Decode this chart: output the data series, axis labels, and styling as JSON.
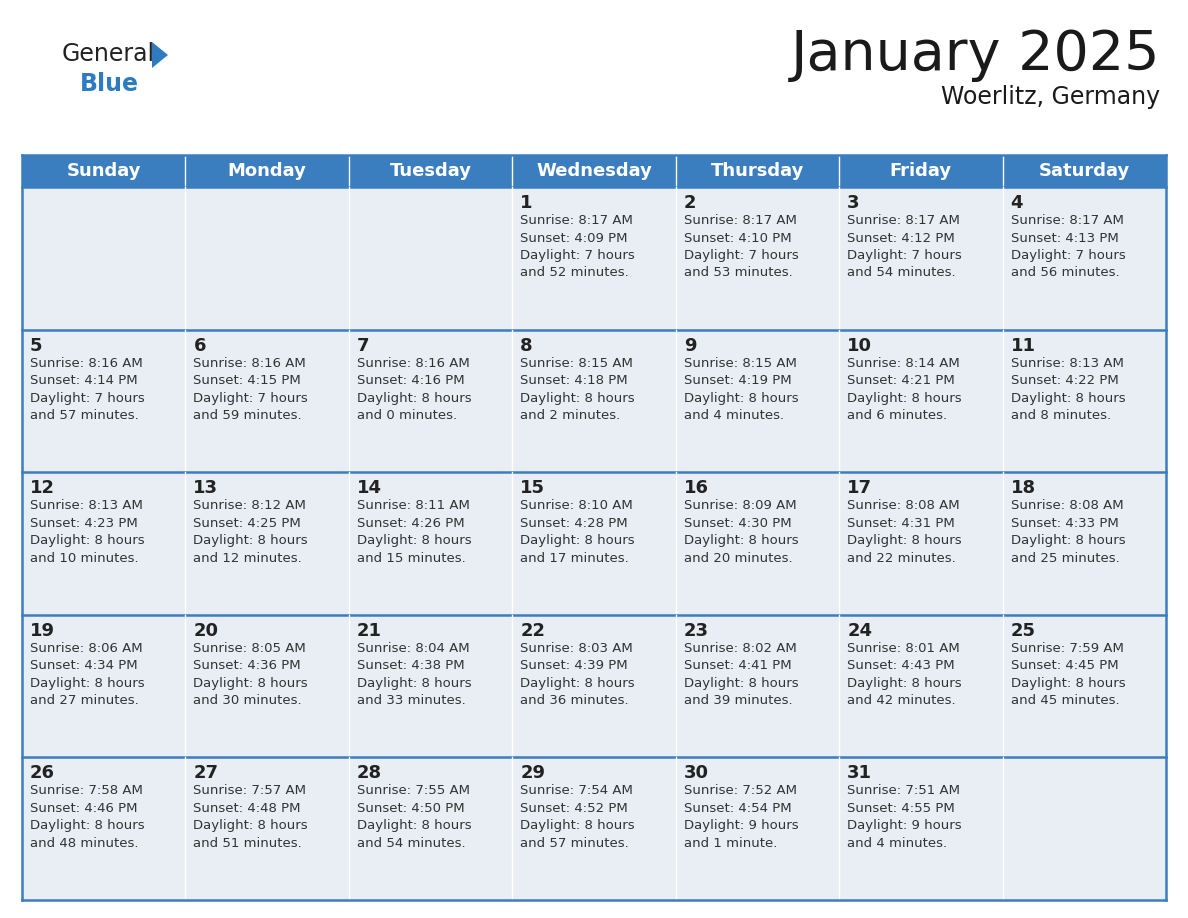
{
  "title": "January 2025",
  "subtitle": "Woerlitz, Germany",
  "header_color": "#3A7EBF",
  "header_text_color": "#FFFFFF",
  "cell_bg_color": "#E8EEF4",
  "border_color": "#3A7EBF",
  "day_names": [
    "Sunday",
    "Monday",
    "Tuesday",
    "Wednesday",
    "Thursday",
    "Friday",
    "Saturday"
  ],
  "title_fontsize": 40,
  "subtitle_fontsize": 17,
  "header_fontsize": 13,
  "day_num_fontsize": 13,
  "info_fontsize": 9.5,
  "logo_general_color": "#222222",
  "logo_blue_color": "#2E7BBF",
  "logo_triangle_color": "#2E7BBF",
  "weeks": [
    [
      {
        "day": "",
        "info": ""
      },
      {
        "day": "",
        "info": ""
      },
      {
        "day": "",
        "info": ""
      },
      {
        "day": "1",
        "info": "Sunrise: 8:17 AM\nSunset: 4:09 PM\nDaylight: 7 hours\nand 52 minutes."
      },
      {
        "day": "2",
        "info": "Sunrise: 8:17 AM\nSunset: 4:10 PM\nDaylight: 7 hours\nand 53 minutes."
      },
      {
        "day": "3",
        "info": "Sunrise: 8:17 AM\nSunset: 4:12 PM\nDaylight: 7 hours\nand 54 minutes."
      },
      {
        "day": "4",
        "info": "Sunrise: 8:17 AM\nSunset: 4:13 PM\nDaylight: 7 hours\nand 56 minutes."
      }
    ],
    [
      {
        "day": "5",
        "info": "Sunrise: 8:16 AM\nSunset: 4:14 PM\nDaylight: 7 hours\nand 57 minutes."
      },
      {
        "day": "6",
        "info": "Sunrise: 8:16 AM\nSunset: 4:15 PM\nDaylight: 7 hours\nand 59 minutes."
      },
      {
        "day": "7",
        "info": "Sunrise: 8:16 AM\nSunset: 4:16 PM\nDaylight: 8 hours\nand 0 minutes."
      },
      {
        "day": "8",
        "info": "Sunrise: 8:15 AM\nSunset: 4:18 PM\nDaylight: 8 hours\nand 2 minutes."
      },
      {
        "day": "9",
        "info": "Sunrise: 8:15 AM\nSunset: 4:19 PM\nDaylight: 8 hours\nand 4 minutes."
      },
      {
        "day": "10",
        "info": "Sunrise: 8:14 AM\nSunset: 4:21 PM\nDaylight: 8 hours\nand 6 minutes."
      },
      {
        "day": "11",
        "info": "Sunrise: 8:13 AM\nSunset: 4:22 PM\nDaylight: 8 hours\nand 8 minutes."
      }
    ],
    [
      {
        "day": "12",
        "info": "Sunrise: 8:13 AM\nSunset: 4:23 PM\nDaylight: 8 hours\nand 10 minutes."
      },
      {
        "day": "13",
        "info": "Sunrise: 8:12 AM\nSunset: 4:25 PM\nDaylight: 8 hours\nand 12 minutes."
      },
      {
        "day": "14",
        "info": "Sunrise: 8:11 AM\nSunset: 4:26 PM\nDaylight: 8 hours\nand 15 minutes."
      },
      {
        "day": "15",
        "info": "Sunrise: 8:10 AM\nSunset: 4:28 PM\nDaylight: 8 hours\nand 17 minutes."
      },
      {
        "day": "16",
        "info": "Sunrise: 8:09 AM\nSunset: 4:30 PM\nDaylight: 8 hours\nand 20 minutes."
      },
      {
        "day": "17",
        "info": "Sunrise: 8:08 AM\nSunset: 4:31 PM\nDaylight: 8 hours\nand 22 minutes."
      },
      {
        "day": "18",
        "info": "Sunrise: 8:08 AM\nSunset: 4:33 PM\nDaylight: 8 hours\nand 25 minutes."
      }
    ],
    [
      {
        "day": "19",
        "info": "Sunrise: 8:06 AM\nSunset: 4:34 PM\nDaylight: 8 hours\nand 27 minutes."
      },
      {
        "day": "20",
        "info": "Sunrise: 8:05 AM\nSunset: 4:36 PM\nDaylight: 8 hours\nand 30 minutes."
      },
      {
        "day": "21",
        "info": "Sunrise: 8:04 AM\nSunset: 4:38 PM\nDaylight: 8 hours\nand 33 minutes."
      },
      {
        "day": "22",
        "info": "Sunrise: 8:03 AM\nSunset: 4:39 PM\nDaylight: 8 hours\nand 36 minutes."
      },
      {
        "day": "23",
        "info": "Sunrise: 8:02 AM\nSunset: 4:41 PM\nDaylight: 8 hours\nand 39 minutes."
      },
      {
        "day": "24",
        "info": "Sunrise: 8:01 AM\nSunset: 4:43 PM\nDaylight: 8 hours\nand 42 minutes."
      },
      {
        "day": "25",
        "info": "Sunrise: 7:59 AM\nSunset: 4:45 PM\nDaylight: 8 hours\nand 45 minutes."
      }
    ],
    [
      {
        "day": "26",
        "info": "Sunrise: 7:58 AM\nSunset: 4:46 PM\nDaylight: 8 hours\nand 48 minutes."
      },
      {
        "day": "27",
        "info": "Sunrise: 7:57 AM\nSunset: 4:48 PM\nDaylight: 8 hours\nand 51 minutes."
      },
      {
        "day": "28",
        "info": "Sunrise: 7:55 AM\nSunset: 4:50 PM\nDaylight: 8 hours\nand 54 minutes."
      },
      {
        "day": "29",
        "info": "Sunrise: 7:54 AM\nSunset: 4:52 PM\nDaylight: 8 hours\nand 57 minutes."
      },
      {
        "day": "30",
        "info": "Sunrise: 7:52 AM\nSunset: 4:54 PM\nDaylight: 9 hours\nand 1 minute."
      },
      {
        "day": "31",
        "info": "Sunrise: 7:51 AM\nSunset: 4:55 PM\nDaylight: 9 hours\nand 4 minutes."
      },
      {
        "day": "",
        "info": ""
      }
    ]
  ]
}
